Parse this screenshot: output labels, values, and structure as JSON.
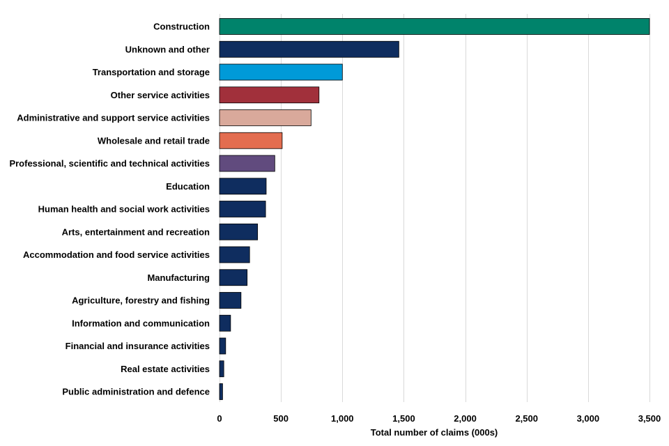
{
  "chart_data": {
    "type": "bar",
    "orientation": "horizontal",
    "title": "",
    "xlabel": "Total number of claims (000s)",
    "ylabel": "",
    "xlim": [
      0,
      3500
    ],
    "xticks": [
      0,
      500,
      1000,
      1500,
      2000,
      2500,
      3000,
      3500
    ],
    "xtick_labels": [
      "0",
      "500",
      "1,000",
      "1,500",
      "2,000",
      "2,500",
      "3,000",
      "3,500"
    ],
    "grid": "vertical",
    "legend": "none",
    "categories": [
      "Construction",
      "Unknown and other",
      "Transportation and storage",
      "Other service activities",
      "Administrative and support service activities",
      "Wholesale and retail trade",
      "Professional, scientific and technical activities",
      "Education",
      "Human health and social work activities",
      "Arts, entertainment and recreation",
      "Accommodation and food service activities",
      "Manufacturing",
      "Agriculture, forestry and fishing",
      "Information and communication",
      "Financial and insurance activities",
      "Real estate activities",
      "Public administration and defence"
    ],
    "values": [
      3500,
      1460,
      1000,
      810,
      745,
      510,
      450,
      380,
      375,
      310,
      245,
      225,
      175,
      90,
      50,
      35,
      25
    ],
    "colors": [
      "#00836b",
      "#0f2d5f",
      "#009ad8",
      "#a1303b",
      "#d9a99b",
      "#e36d50",
      "#614b7e",
      "#0f2d5f",
      "#0f2d5f",
      "#0f2d5f",
      "#0f2d5f",
      "#0f2d5f",
      "#0f2d5f",
      "#0f2d5f",
      "#0f2d5f",
      "#0f2d5f",
      "#0f2d5f"
    ]
  }
}
